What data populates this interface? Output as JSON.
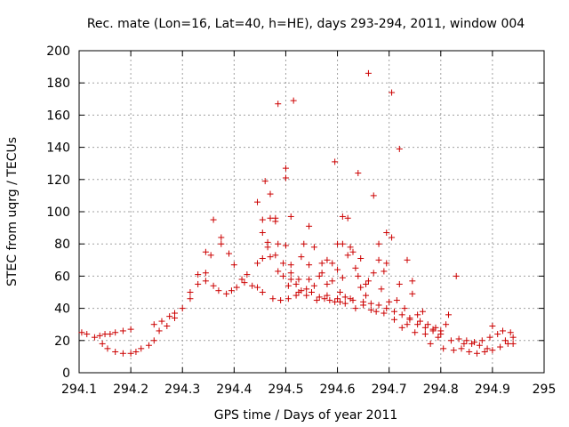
{
  "chart_data": {
    "type": "scatter",
    "title": "Rec. mate (Lon=16, Lat=40, h=HE), days 293-294, 2011, window 004",
    "xlabel": "GPS time / Days of year 2011",
    "ylabel": "STEC from uqrg / TECUs",
    "xlim": [
      294.1,
      295
    ],
    "ylim": [
      0,
      200
    ],
    "x_ticks": [
      "294.1",
      "294.2",
      "294.3",
      "294.4",
      "294.5",
      "294.6",
      "294.7",
      "294.8",
      "294.9",
      "295"
    ],
    "y_ticks": [
      "0",
      "20",
      "40",
      "60",
      "80",
      "100",
      "120",
      "140",
      "160",
      "180",
      "200"
    ],
    "grid": true,
    "marker": "+",
    "color": "#cc0000",
    "series": [
      {
        "name": "STEC",
        "points": [
          [
            294.105,
            25
          ],
          [
            294.115,
            24
          ],
          [
            294.13,
            22
          ],
          [
            294.14,
            23
          ],
          [
            294.15,
            24
          ],
          [
            294.16,
            24
          ],
          [
            294.17,
            25
          ],
          [
            294.185,
            26
          ],
          [
            294.2,
            27
          ],
          [
            294.145,
            18
          ],
          [
            294.155,
            15
          ],
          [
            294.17,
            13
          ],
          [
            294.185,
            12
          ],
          [
            294.2,
            12
          ],
          [
            294.21,
            13
          ],
          [
            294.22,
            15
          ],
          [
            294.235,
            17
          ],
          [
            294.245,
            20
          ],
          [
            294.245,
            30
          ],
          [
            294.255,
            26
          ],
          [
            294.26,
            32
          ],
          [
            294.27,
            29
          ],
          [
            294.275,
            35
          ],
          [
            294.285,
            34
          ],
          [
            294.285,
            37
          ],
          [
            294.3,
            40
          ],
          [
            294.315,
            46
          ],
          [
            294.315,
            50
          ],
          [
            294.33,
            55
          ],
          [
            294.33,
            61
          ],
          [
            294.345,
            57
          ],
          [
            294.345,
            62
          ],
          [
            294.345,
            75
          ],
          [
            294.355,
            73
          ],
          [
            294.36,
            95
          ],
          [
            294.36,
            54
          ],
          [
            294.37,
            51
          ],
          [
            294.375,
            80
          ],
          [
            294.375,
            84
          ],
          [
            294.385,
            49
          ],
          [
            294.39,
            74
          ],
          [
            294.395,
            51
          ],
          [
            294.4,
            67
          ],
          [
            294.405,
            53
          ],
          [
            294.415,
            58
          ],
          [
            294.42,
            56
          ],
          [
            294.425,
            61
          ],
          [
            294.435,
            54
          ],
          [
            294.445,
            53
          ],
          [
            294.445,
            68
          ],
          [
            294.445,
            106
          ],
          [
            294.455,
            50
          ],
          [
            294.455,
            71
          ],
          [
            294.455,
            87
          ],
          [
            294.455,
            95
          ],
          [
            294.46,
            119
          ],
          [
            294.465,
            78
          ],
          [
            294.465,
            81
          ],
          [
            294.47,
            72
          ],
          [
            294.47,
            96
          ],
          [
            294.47,
            111
          ],
          [
            294.475,
            46
          ],
          [
            294.48,
            73
          ],
          [
            294.48,
            94
          ],
          [
            294.48,
            96
          ],
          [
            294.485,
            63
          ],
          [
            294.485,
            80
          ],
          [
            294.485,
            167
          ],
          [
            294.49,
            45
          ],
          [
            294.495,
            60
          ],
          [
            294.495,
            68
          ],
          [
            294.5,
            79
          ],
          [
            294.5,
            121
          ],
          [
            294.5,
            127
          ],
          [
            294.505,
            46
          ],
          [
            294.505,
            54
          ],
          [
            294.51,
            58
          ],
          [
            294.51,
            62
          ],
          [
            294.51,
            67
          ],
          [
            294.51,
            97
          ],
          [
            294.515,
            169
          ],
          [
            294.52,
            48
          ],
          [
            294.525,
            50
          ],
          [
            294.525,
            58
          ],
          [
            294.53,
            51
          ],
          [
            294.53,
            72
          ],
          [
            294.535,
            80
          ],
          [
            294.54,
            48
          ],
          [
            294.54,
            52
          ],
          [
            294.545,
            91
          ],
          [
            294.545,
            67
          ],
          [
            294.55,
            50
          ],
          [
            294.555,
            54
          ],
          [
            294.555,
            78
          ],
          [
            294.565,
            47
          ],
          [
            294.565,
            60
          ],
          [
            294.57,
            62
          ],
          [
            294.57,
            68
          ],
          [
            294.575,
            46
          ],
          [
            294.58,
            55
          ],
          [
            294.58,
            70
          ],
          [
            294.585,
            45
          ],
          [
            294.59,
            57
          ],
          [
            294.59,
            68
          ],
          [
            294.595,
            44
          ],
          [
            294.595,
            131
          ],
          [
            294.6,
            80
          ],
          [
            294.6,
            64
          ],
          [
            294.605,
            44
          ],
          [
            294.605,
            50
          ],
          [
            294.61,
            59
          ],
          [
            294.61,
            80
          ],
          [
            294.61,
            97
          ],
          [
            294.615,
            43
          ],
          [
            294.62,
            73
          ],
          [
            294.62,
            96
          ],
          [
            294.625,
            46
          ],
          [
            294.625,
            78
          ],
          [
            294.63,
            75
          ],
          [
            294.635,
            40
          ],
          [
            294.635,
            65
          ],
          [
            294.64,
            60
          ],
          [
            294.64,
            124
          ],
          [
            294.645,
            53
          ],
          [
            294.645,
            71
          ],
          [
            294.65,
            42
          ],
          [
            294.655,
            48
          ],
          [
            294.655,
            55
          ],
          [
            294.66,
            186
          ],
          [
            294.66,
            57
          ],
          [
            294.665,
            39
          ],
          [
            294.67,
            110
          ],
          [
            294.67,
            62
          ],
          [
            294.675,
            38
          ],
          [
            294.68,
            80
          ],
          [
            294.68,
            70
          ],
          [
            294.685,
            52
          ],
          [
            294.69,
            37
          ],
          [
            294.69,
            63
          ],
          [
            294.695,
            87
          ],
          [
            294.695,
            68
          ],
          [
            294.7,
            44
          ],
          [
            294.705,
            84
          ],
          [
            294.705,
            174
          ],
          [
            294.71,
            33
          ],
          [
            294.715,
            45
          ],
          [
            294.72,
            139
          ],
          [
            294.72,
            55
          ],
          [
            294.725,
            28
          ],
          [
            294.73,
            40
          ],
          [
            294.735,
            70
          ],
          [
            294.735,
            30
          ],
          [
            294.74,
            34
          ],
          [
            294.745,
            49
          ],
          [
            294.745,
            57
          ],
          [
            294.75,
            25
          ],
          [
            294.755,
            36
          ],
          [
            294.76,
            32
          ],
          [
            294.765,
            38
          ],
          [
            294.77,
            24
          ],
          [
            294.775,
            30
          ],
          [
            294.78,
            18
          ],
          [
            294.785,
            26
          ],
          [
            294.79,
            28
          ],
          [
            294.795,
            22
          ],
          [
            294.8,
            24
          ],
          [
            294.805,
            15
          ],
          [
            294.81,
            30
          ],
          [
            294.815,
            36
          ],
          [
            294.82,
            20
          ],
          [
            294.825,
            14
          ],
          [
            294.83,
            60
          ],
          [
            294.835,
            21
          ],
          [
            294.84,
            15
          ],
          [
            294.845,
            18
          ],
          [
            294.85,
            20
          ],
          [
            294.855,
            13
          ],
          [
            294.86,
            18
          ],
          [
            294.865,
            19
          ],
          [
            294.87,
            12
          ],
          [
            294.875,
            17
          ],
          [
            294.88,
            20
          ],
          [
            294.885,
            13
          ],
          [
            294.89,
            15
          ],
          [
            294.895,
            22
          ],
          [
            294.9,
            14
          ],
          [
            294.9,
            29
          ],
          [
            294.91,
            24
          ],
          [
            294.915,
            16
          ],
          [
            294.92,
            26
          ],
          [
            294.925,
            20
          ],
          [
            294.93,
            18
          ],
          [
            294.935,
            25
          ],
          [
            294.94,
            22
          ],
          [
            294.94,
            18
          ],
          [
            294.52,
            55
          ],
          [
            294.545,
            58
          ],
          [
            294.56,
            45
          ],
          [
            294.58,
            48
          ],
          [
            294.6,
            46
          ],
          [
            294.615,
            47
          ],
          [
            294.63,
            45
          ],
          [
            294.65,
            44
          ],
          [
            294.665,
            43
          ],
          [
            294.68,
            42
          ],
          [
            294.695,
            40
          ],
          [
            294.71,
            38
          ],
          [
            294.725,
            36
          ],
          [
            294.74,
            33
          ],
          [
            294.755,
            30
          ],
          [
            294.77,
            28
          ],
          [
            294.785,
            27
          ],
          [
            294.8,
            26
          ]
        ]
      }
    ]
  }
}
